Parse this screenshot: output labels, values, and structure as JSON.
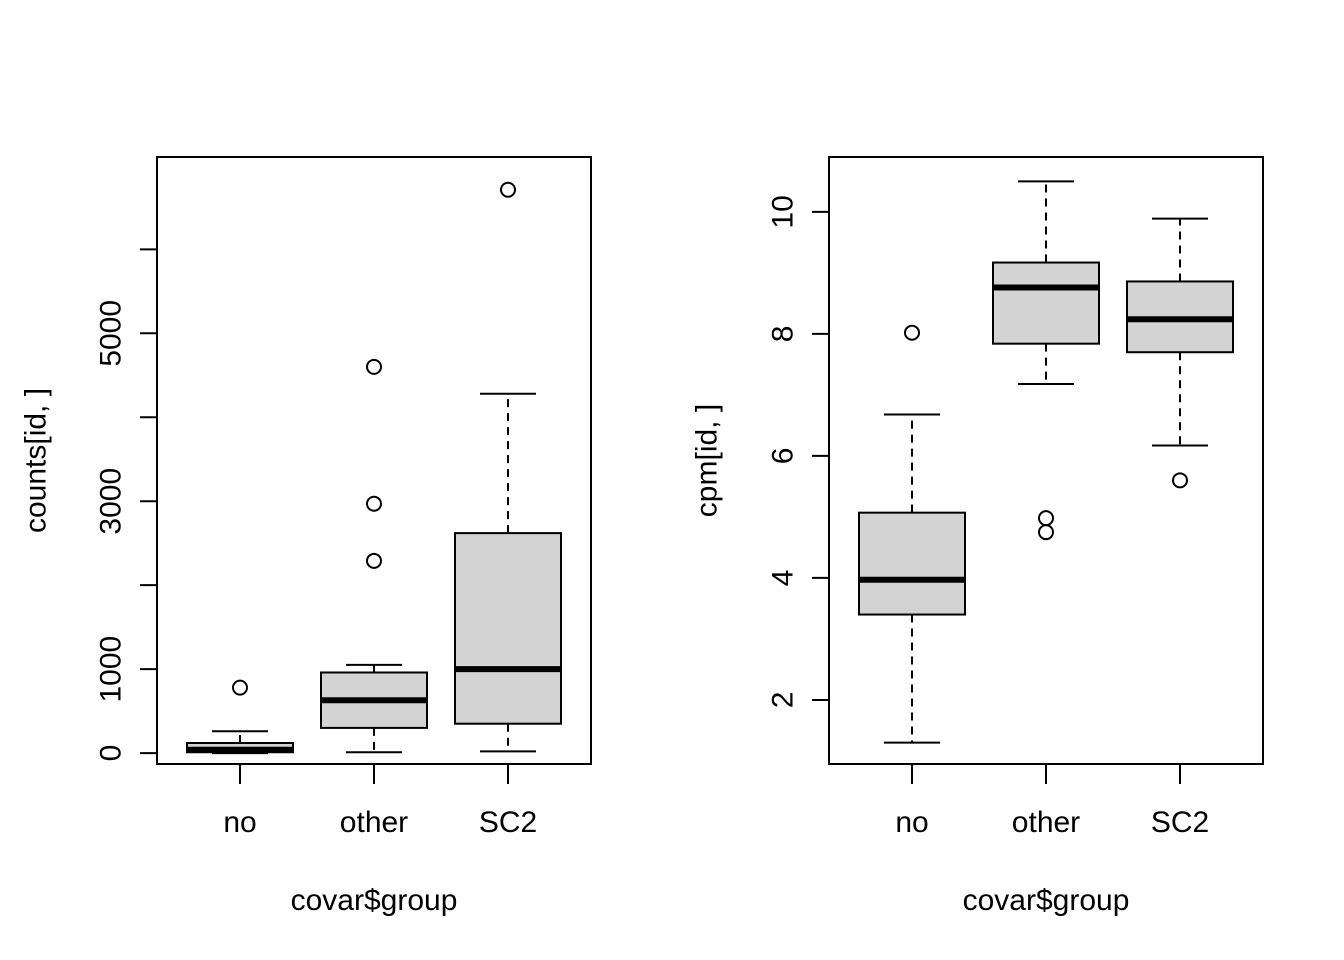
{
  "chart_data": [
    {
      "type": "boxplot",
      "xlabel": "covar$group",
      "ylabel": "counts[id, ]",
      "ylim": [
        -130,
        7100
      ],
      "yticks": [
        0,
        1000,
        2000,
        3000,
        4000,
        5000,
        6000
      ],
      "ytick_labels": [
        "0",
        "1000",
        "",
        "3000",
        "",
        "5000",
        ""
      ],
      "categories": [
        "no",
        "other",
        "SC2"
      ],
      "box_fill": "#d3d3d3",
      "boxes": [
        {
          "name": "no",
          "whisker_low": 0,
          "q1": 10,
          "median": 40,
          "q3": 120,
          "whisker_high": 260,
          "outliers": [
            780
          ]
        },
        {
          "name": "other",
          "whisker_low": 10,
          "q1": 300,
          "median": 630,
          "q3": 960,
          "whisker_high": 1050,
          "outliers": [
            2290,
            2970,
            4600
          ]
        },
        {
          "name": "SC2",
          "whisker_low": 20,
          "q1": 350,
          "median": 1000,
          "q3": 2620,
          "whisker_high": 4280,
          "outliers": [
            6710
          ]
        }
      ]
    },
    {
      "type": "boxplot",
      "xlabel": "covar$group",
      "ylabel": "cpm[id, ]",
      "ylim": [
        0.95,
        10.9
      ],
      "yticks": [
        2,
        4,
        6,
        8,
        10
      ],
      "ytick_labels": [
        "2",
        "4",
        "6",
        "8",
        "10"
      ],
      "categories": [
        "no",
        "other",
        "SC2"
      ],
      "box_fill": "#d3d3d3",
      "boxes": [
        {
          "name": "no",
          "whisker_low": 1.3,
          "q1": 3.4,
          "median": 3.97,
          "q3": 5.07,
          "whisker_high": 6.68,
          "outliers": [
            8.02
          ]
        },
        {
          "name": "other",
          "whisker_low": 7.18,
          "q1": 7.84,
          "median": 8.76,
          "q3": 9.17,
          "whisker_high": 10.5,
          "outliers": [
            4.75,
            4.98
          ]
        },
        {
          "name": "SC2",
          "whisker_low": 6.17,
          "q1": 7.7,
          "median": 8.24,
          "q3": 8.86,
          "whisker_high": 9.89,
          "outliers": [
            5.6
          ]
        }
      ]
    }
  ]
}
